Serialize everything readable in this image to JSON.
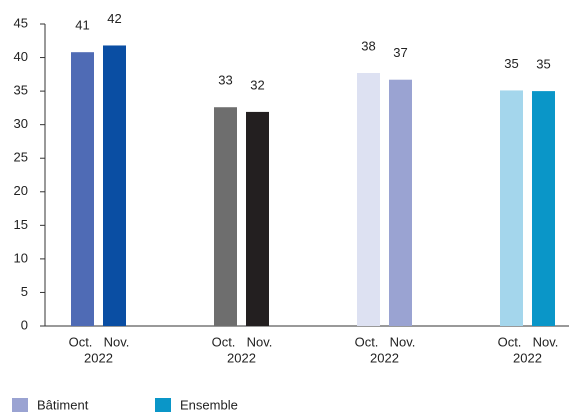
{
  "chart_data": {
    "type": "bar",
    "categories": [
      "Oct.",
      "Nov."
    ],
    "year": "2022",
    "series": [
      {
        "colors": [
          "#4f6bb5",
          "#0a4ea3"
        ],
        "values": [
          40.8,
          41.8
        ],
        "value_labels": [
          "41",
          "42"
        ]
      },
      {
        "colors": [
          "#6e6e6e",
          "#231f20"
        ],
        "values": [
          32.6,
          31.9
        ],
        "value_labels": [
          "33",
          "32"
        ]
      },
      {
        "name": "Bâtiment",
        "colors": [
          "#dde1f2",
          "#9aa3d2"
        ],
        "values": [
          37.7,
          36.7
        ],
        "value_labels": [
          "38",
          "37"
        ]
      },
      {
        "name": "Ensemble",
        "colors": [
          "#a4d6ec",
          "#0a96c8"
        ],
        "values": [
          35.1,
          35.0
        ],
        "value_labels": [
          "35",
          "35"
        ]
      }
    ],
    "ylim": [
      0,
      45
    ],
    "yticks": [
      0,
      5,
      10,
      15,
      20,
      25,
      30,
      35,
      40,
      45
    ],
    "grid": false
  }
}
